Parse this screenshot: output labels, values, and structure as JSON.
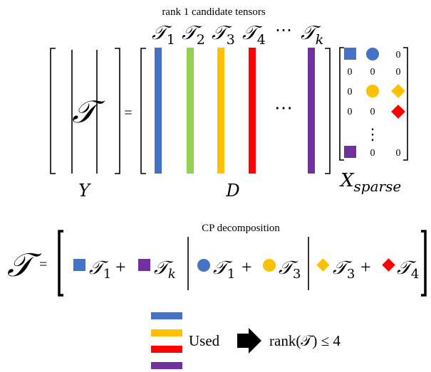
{
  "top": {
    "header": "rank 1 candidate tensors",
    "equals": "=",
    "ellipsis": "⋯",
    "cols": [
      {
        "sym": "𝒯",
        "sub": "1",
        "color": "#4472C4"
      },
      {
        "sym": "𝒯",
        "sub": "2",
        "color": "#92D050"
      },
      {
        "sym": "𝒯",
        "sub": "3",
        "color": "#FFC000"
      },
      {
        "sym": "𝒯",
        "sub": "4",
        "color": "#FF0000"
      },
      {
        "sym": "𝒯",
        "sub": "k",
        "color": "#7030A0"
      }
    ],
    "top_ellipsis": "⋯",
    "left_matrix": {
      "symbol": "𝒯",
      "label": "Y"
    },
    "dict_label": "D",
    "sparse": {
      "label_main": "X",
      "label_sub": "sparse",
      "zero": "0",
      "vdots": "⋮"
    }
  },
  "bottom": {
    "header": "CP decomposition",
    "lhs": "𝒯",
    "equals": "=",
    "plus": "+",
    "terms": [
      {
        "sym": "𝒯",
        "sub": "1"
      },
      {
        "sym": "𝒯",
        "sub": "k"
      },
      {
        "sym": "𝒯",
        "sub": "1"
      },
      {
        "sym": "𝒯",
        "sub": "3"
      },
      {
        "sym": "𝒯",
        "sub": "3"
      },
      {
        "sym": "𝒯",
        "sub": "4"
      }
    ]
  },
  "legend": {
    "colors": [
      "#4472C4",
      "#FFC000",
      "#FF0000",
      "#7030A0"
    ],
    "used_label": "Used",
    "rank_text": "rank(𝒯) ≤ 4"
  },
  "palette": {
    "blue": "#4472C4",
    "green": "#92D050",
    "yellow": "#FFC000",
    "red": "#FF0000",
    "purple": "#7030A0"
  }
}
